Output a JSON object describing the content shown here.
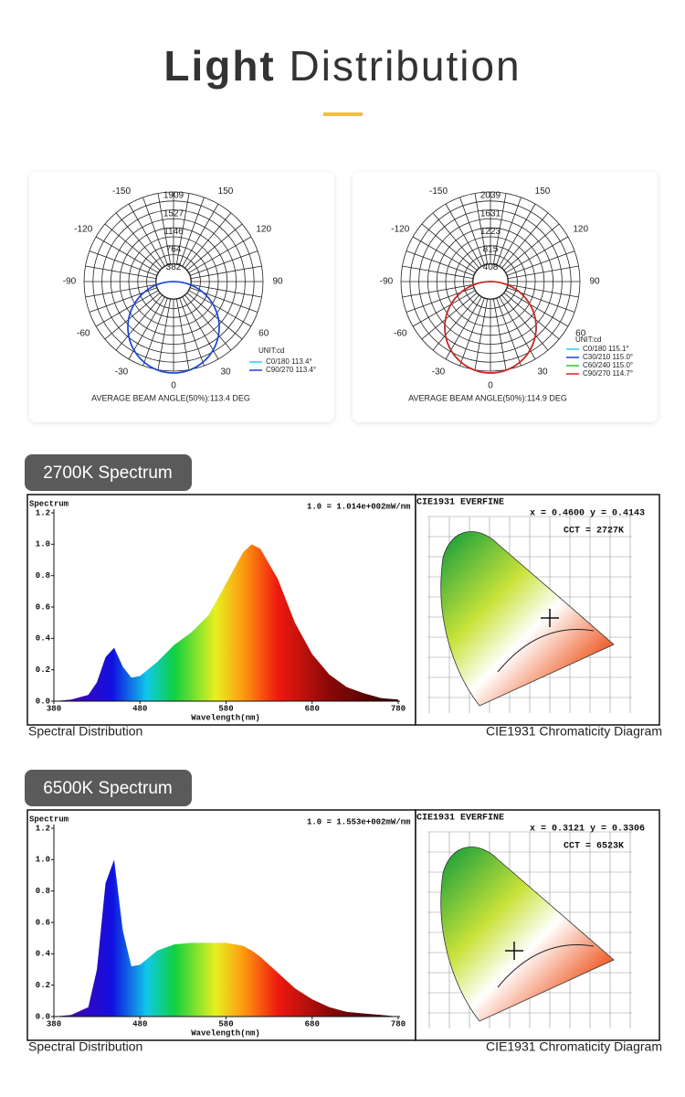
{
  "title_bold": "Light",
  "title_light": "Distribution",
  "polar_panels": [
    {
      "unit": "UNIT:cd",
      "ring_labels": [
        1909,
        1527,
        1146,
        764,
        382
      ],
      "angle_labels": [
        -150,
        150,
        -120,
        120,
        -90,
        90,
        -60,
        60,
        -30,
        30,
        0
      ],
      "legend": [
        {
          "name": "C0/180 113.4°",
          "color": "#36c6f0"
        },
        {
          "name": "C90/270 113.4°",
          "color": "#1f3fd8"
        }
      ],
      "caption": "AVERAGE BEAM ANGLE(50%):113.4 DEG"
    },
    {
      "unit": "UNIT:cd",
      "ring_labels": [
        2039,
        1631,
        1223,
        815,
        408
      ],
      "angle_labels": [
        -150,
        150,
        -120,
        120,
        -90,
        90,
        -60,
        60,
        -30,
        30,
        0
      ],
      "legend": [
        {
          "name": "C0/180 115.1°",
          "color": "#36c6f0"
        },
        {
          "name": "C30/210 115.0°",
          "color": "#1f3fd8"
        },
        {
          "name": "C60/240 115.0°",
          "color": "#2fc42f"
        },
        {
          "name": "C90/270 114.7°",
          "color": "#e02020"
        }
      ],
      "caption": "AVERAGE BEAM ANGLE(50%):114.9 DEG"
    }
  ],
  "sections": [
    {
      "badge": "2700K Spectrum",
      "spectral_caption": "Spectral Distribution",
      "cie": {
        "title": "CIE1931   EVERFINE",
        "coords": "x = 0.4600 y = 0.4143",
        "cct": "CCT = 2727K"
      },
      "cie_caption": "CIE1931 Chromaticity Diagram"
    },
    {
      "badge": "6500K Spectrum",
      "spectral_caption": "Spectral Distribution",
      "cie": {
        "title": "CIE1931   EVERFINE",
        "coords": "x = 0.3121 y = 0.3306",
        "cct": "CCT = 6523K"
      },
      "cie_caption": "CIE1931 Chromaticity Diagram"
    }
  ],
  "chart_data": [
    {
      "type": "line",
      "y_title": "Spectrum",
      "note": "1.0 = 1.014e+002mW/nm",
      "x_label": "Wavelength(nm)",
      "x": [
        380,
        400,
        420,
        430,
        440,
        450,
        460,
        470,
        480,
        500,
        520,
        540,
        560,
        580,
        600,
        610,
        620,
        640,
        660,
        680,
        700,
        720,
        740,
        760,
        780
      ],
      "series": [
        {
          "values": [
            0,
            0.01,
            0.04,
            0.12,
            0.28,
            0.34,
            0.22,
            0.15,
            0.16,
            0.25,
            0.36,
            0.44,
            0.55,
            0.75,
            0.95,
            1.0,
            0.97,
            0.78,
            0.5,
            0.3,
            0.17,
            0.09,
            0.05,
            0.02,
            0.01
          ]
        }
      ],
      "xlim": [
        380,
        780
      ],
      "xticks": [
        380,
        480,
        580,
        680,
        780
      ],
      "ylim": [
        0,
        1.2
      ],
      "yticks": [
        {
          "value": 0,
          "label": "0.0"
        },
        {
          "value": 0.2,
          "label": "0.2"
        },
        {
          "value": 0.4,
          "label": "0.4"
        },
        {
          "value": 0.6,
          "label": "0.6"
        },
        {
          "value": 0.8,
          "label": "0.8"
        },
        {
          "value": 1,
          "label": "1.0"
        },
        {
          "value": 1.2,
          "label": "1.2"
        }
      ]
    },
    {
      "type": "line",
      "y_title": "Spectrum",
      "note": "1.0 = 1.553e+002mW/nm",
      "x_label": "Wavelength(nm)",
      "x": [
        380,
        400,
        420,
        430,
        440,
        450,
        460,
        470,
        480,
        500,
        520,
        540,
        560,
        580,
        600,
        610,
        620,
        640,
        660,
        680,
        700,
        720,
        740,
        760,
        780
      ],
      "series": [
        {
          "values": [
            0,
            0.01,
            0.06,
            0.3,
            0.85,
            1.0,
            0.55,
            0.32,
            0.33,
            0.42,
            0.46,
            0.47,
            0.47,
            0.47,
            0.45,
            0.42,
            0.38,
            0.28,
            0.18,
            0.11,
            0.06,
            0.03,
            0.02,
            0.01,
            0
          ]
        }
      ],
      "xlim": [
        380,
        780
      ],
      "xticks": [
        380,
        480,
        580,
        680,
        780
      ],
      "ylim": [
        0,
        1.2
      ],
      "yticks": [
        {
          "value": 0,
          "label": "0.0"
        },
        {
          "value": 0.2,
          "label": "0.2"
        },
        {
          "value": 0.4,
          "label": "0.4"
        },
        {
          "value": 0.6,
          "label": "0.6"
        },
        {
          "value": 0.8,
          "label": "0.8"
        },
        {
          "value": 1,
          "label": "1.0"
        },
        {
          "value": 1.2,
          "label": "1.2"
        }
      ]
    }
  ]
}
